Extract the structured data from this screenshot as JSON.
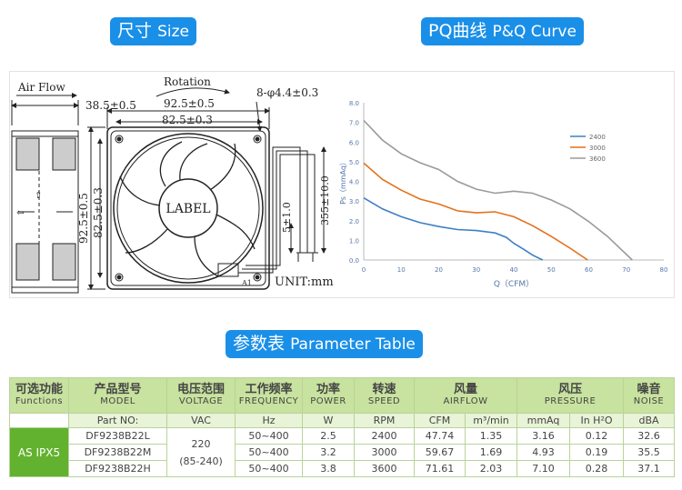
{
  "headers": {
    "size": {
      "zh": "尺寸",
      "en": "Size"
    },
    "pq": {
      "zh": "PQ曲线",
      "en": "P&Q Curve"
    },
    "param": {
      "zh": "参数表",
      "en": "Parameter Table"
    }
  },
  "drawing": {
    "air_flow": "Air Flow",
    "rotation": "Rotation",
    "hole_spec": "8-φ4.4±0.3",
    "dim_38_5": "38.5±0.5",
    "dim_92_5": "92.5±0.5",
    "dim_82_5": "82.5±0.3",
    "dim_92_5_v": "92.5±0.5",
    "dim_82_5_v": "82.5±0.3",
    "dim_5": "5±1.0",
    "dim_355": "355±10.0",
    "label": "LABEL",
    "unit": "UNIT:mm",
    "pin": "A1"
  },
  "chart_data": {
    "type": "line",
    "xlabel": "Q（CFM）",
    "ylabel": "Ps（mmAq）",
    "xlim": [
      0,
      80
    ],
    "ylim": [
      0,
      8
    ],
    "x_ticks": [
      "0",
      "10",
      "20",
      "30",
      "40",
      "50",
      "60",
      "70",
      "80"
    ],
    "y_ticks": [
      "0.0",
      "1.0",
      "2.0",
      "3.0",
      "4.0",
      "5.0",
      "6.0",
      "7.0",
      "8.0"
    ],
    "grid": false,
    "legend_placement": "right",
    "series": [
      {
        "name": "2400",
        "color": "#3d7fc7",
        "x": [
          0,
          5,
          10,
          15,
          20,
          25,
          30,
          35,
          38,
          40,
          43,
          45,
          47.7
        ],
        "y": [
          3.16,
          2.6,
          2.2,
          1.9,
          1.7,
          1.55,
          1.5,
          1.38,
          1.15,
          0.85,
          0.5,
          0.25,
          0.0
        ]
      },
      {
        "name": "3000",
        "color": "#e4711c",
        "x": [
          0,
          5,
          10,
          15,
          20,
          25,
          30,
          35,
          40,
          45,
          50,
          55,
          59.7
        ],
        "y": [
          4.93,
          4.1,
          3.55,
          3.1,
          2.85,
          2.5,
          2.4,
          2.45,
          2.2,
          1.75,
          1.2,
          0.6,
          0.0
        ]
      },
      {
        "name": "3600",
        "color": "#9a9a9a",
        "x": [
          0,
          5,
          10,
          15,
          20,
          25,
          30,
          35,
          40,
          45,
          50,
          55,
          60,
          65,
          71.6
        ],
        "y": [
          7.1,
          6.1,
          5.4,
          4.95,
          4.6,
          4.0,
          3.6,
          3.4,
          3.5,
          3.4,
          3.05,
          2.6,
          1.95,
          1.2,
          0.0
        ]
      }
    ]
  },
  "table": {
    "headers": [
      {
        "zh": "可选功能",
        "en": "Functions"
      },
      {
        "zh": "产品型号",
        "en": "MODEL"
      },
      {
        "zh": "电压范围",
        "en": "VOLTAGE"
      },
      {
        "zh": "工作频率",
        "en": "FREQUENCY"
      },
      {
        "zh": "功率",
        "en": "POWER"
      },
      {
        "zh": "转速",
        "en": "SPEED"
      },
      {
        "zh": "风量",
        "en": "AIRFLOW"
      },
      {
        "zh": "风压",
        "en": "PRESSURE"
      },
      {
        "zh": "噪音",
        "en": "NOISE"
      }
    ],
    "units": [
      "Part NO:",
      "VAC",
      "Hz",
      "W",
      "RPM",
      "CFM",
      "m³/min",
      "mmAq",
      "In H²O",
      "dBA"
    ],
    "function_value": "AS IPX5",
    "voltage": "220",
    "voltage_range": "(85-240)",
    "rows": [
      [
        "DF9238B22L",
        "50~400",
        "2.5",
        "2400",
        "47.74",
        "1.35",
        "3.16",
        "0.12",
        "32.6"
      ],
      [
        "DF9238B22M",
        "50~400",
        "3.2",
        "3000",
        "59.67",
        "1.69",
        "4.93",
        "0.19",
        "35.5"
      ],
      [
        "DF9238B22H",
        "50~400",
        "3.8",
        "3600",
        "71.61",
        "2.03",
        "7.10",
        "0.28",
        "37.1"
      ]
    ]
  }
}
